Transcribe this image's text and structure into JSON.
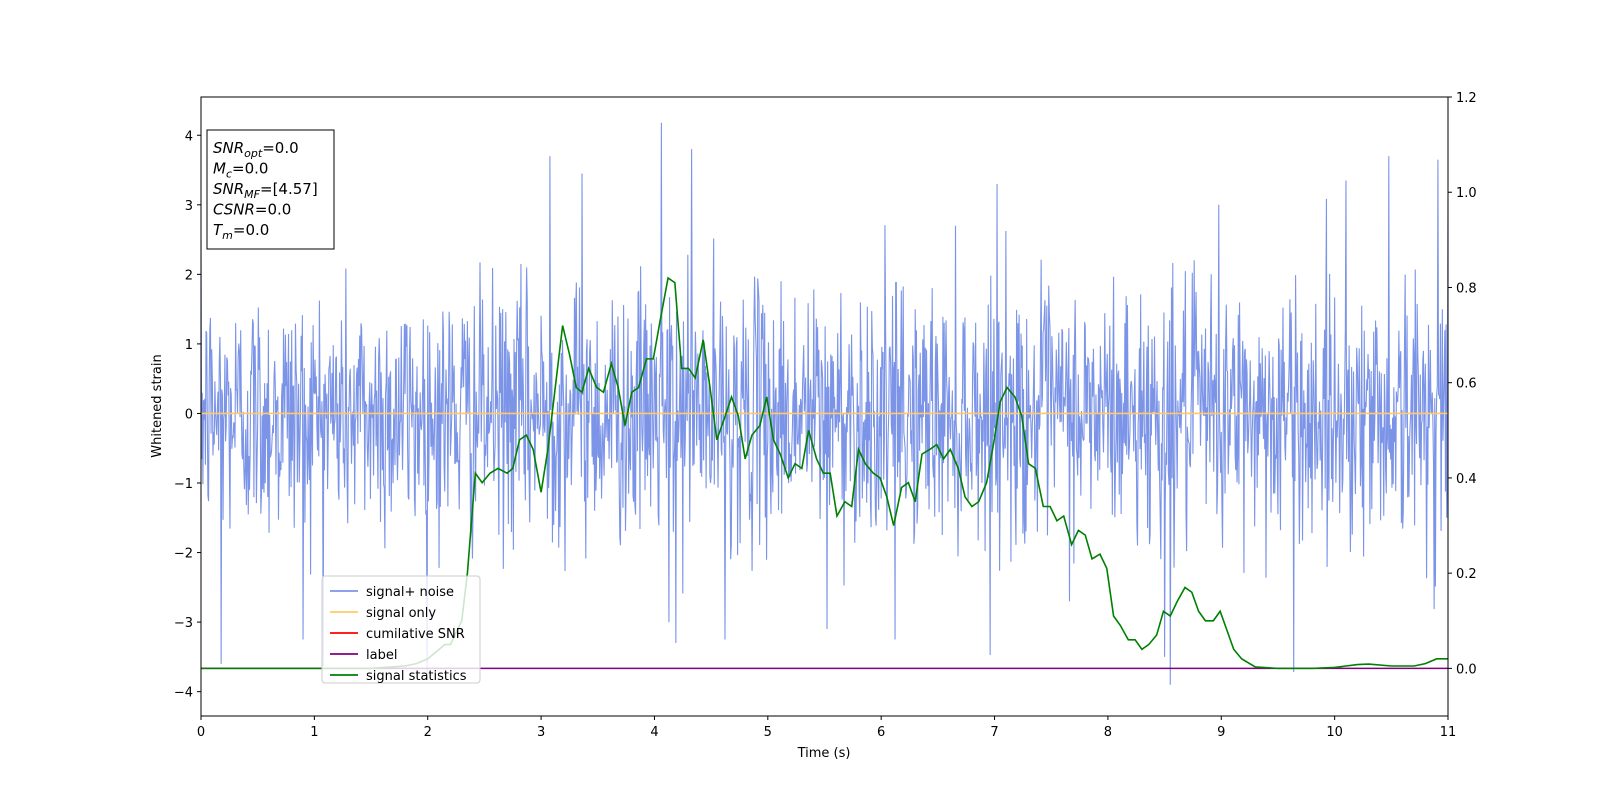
{
  "chart_data": {
    "type": "line",
    "xlabel": "Time (s)",
    "ylabel": "Whitened strain",
    "xlim": [
      0,
      11
    ],
    "ylim": [
      -4.35,
      4.55
    ],
    "y2lim": [
      -0.1,
      1.2
    ],
    "x_ticks": [
      "0",
      "1",
      "2",
      "3",
      "4",
      "5",
      "6",
      "7",
      "8",
      "9",
      "10",
      "11"
    ],
    "y_ticks": [
      "4",
      "3",
      "2",
      "1",
      "0",
      "−1",
      "−2",
      "−3",
      "−4"
    ],
    "y2_ticks": [
      "1.2",
      "1.0",
      "0.8",
      "0.6",
      "0.4",
      "0.2",
      "0.0"
    ],
    "grid": false,
    "legend_position": "lower-left",
    "info_box": [
      {
        "base": "SNR",
        "sub": "opt",
        "rest": "=0.0"
      },
      {
        "base": "M",
        "sub": "c",
        "rest": "=0.0"
      },
      {
        "base": "SNR",
        "sub": "MF",
        "rest": "=[4.57]"
      },
      {
        "base": "CSNR",
        "sub": "",
        "rest": "=0.0"
      },
      {
        "base": "T",
        "sub": "m",
        "rest": "=0.0"
      }
    ],
    "series": [
      {
        "name": "signal+ noise",
        "color": "#7b94e8",
        "axis": "left",
        "kind": "noise",
        "noise_envelope": {
          "typical_peak": 2.3,
          "core_band": [
            -1.3,
            1.4
          ],
          "min": -3.9,
          "max": 4.2,
          "sample_rate_hz": 180
        },
        "spikes": [
          [
            0.18,
            -3.6
          ],
          [
            0.9,
            -3.25
          ],
          [
            3.08,
            3.7
          ],
          [
            3.36,
            3.45
          ],
          [
            4.06,
            4.18
          ],
          [
            4.13,
            -3.0
          ],
          [
            4.19,
            -3.3
          ],
          [
            4.33,
            3.8
          ],
          [
            4.62,
            -3.25
          ],
          [
            5.52,
            -3.1
          ],
          [
            6.12,
            -3.25
          ],
          [
            8.5,
            -3.5
          ],
          [
            8.55,
            -3.92
          ],
          [
            9.64,
            -3.72
          ],
          [
            10.48,
            3.7
          ],
          [
            10.91,
            3.65
          ],
          [
            11.0,
            3.1
          ],
          [
            7.02,
            3.3
          ],
          [
            8.98,
            3.0
          ],
          [
            10.1,
            3.35
          ]
        ]
      },
      {
        "name": "signal only",
        "color": "#ffc966",
        "axis": "left",
        "x": [
          0,
          11
        ],
        "y": [
          0,
          0
        ]
      },
      {
        "name": "cumilative SNR",
        "color": "#ff0000",
        "axis": "right",
        "x": [],
        "y": []
      },
      {
        "name": "label",
        "color": "#800080",
        "axis": "right",
        "x": [
          0,
          11
        ],
        "y": [
          0.0,
          0.0
        ]
      },
      {
        "name": "signal statistics",
        "color": "#008000",
        "axis": "right",
        "x": [
          0,
          0.5,
          1.0,
          1.5,
          1.8,
          1.9,
          2.0,
          2.1,
          2.15,
          2.2,
          2.3,
          2.35,
          2.42,
          2.48,
          2.55,
          2.62,
          2.7,
          2.75,
          2.81,
          2.87,
          2.93,
          3.0,
          3.06,
          3.12,
          3.19,
          3.25,
          3.31,
          3.36,
          3.42,
          3.49,
          3.55,
          3.62,
          3.68,
          3.74,
          3.8,
          3.86,
          3.93,
          3.99,
          4.05,
          4.12,
          4.18,
          4.24,
          4.3,
          4.36,
          4.43,
          4.49,
          4.55,
          4.61,
          4.68,
          4.74,
          4.8,
          4.86,
          4.93,
          4.99,
          5.05,
          5.11,
          5.18,
          5.24,
          5.3,
          5.36,
          5.43,
          5.49,
          5.55,
          5.61,
          5.68,
          5.74,
          5.8,
          5.86,
          5.93,
          5.99,
          6.05,
          6.11,
          6.18,
          6.24,
          6.3,
          6.36,
          6.43,
          6.49,
          6.55,
          6.61,
          6.68,
          6.74,
          6.8,
          6.86,
          6.93,
          6.99,
          7.05,
          7.11,
          7.18,
          7.24,
          7.3,
          7.36,
          7.43,
          7.49,
          7.55,
          7.61,
          7.68,
          7.74,
          7.8,
          7.86,
          7.93,
          7.99,
          8.05,
          8.11,
          8.18,
          8.24,
          8.3,
          8.36,
          8.43,
          8.49,
          8.55,
          8.61,
          8.68,
          8.74,
          8.8,
          8.86,
          8.93,
          8.99,
          9.05,
          9.11,
          9.18,
          9.3,
          9.5,
          9.8,
          10.0,
          10.1,
          10.2,
          10.3,
          10.5,
          10.7,
          10.8,
          10.9,
          11.0
        ],
        "y": [
          0.0,
          0.0,
          0.0,
          0.0,
          0.005,
          0.01,
          0.02,
          0.04,
          0.05,
          0.05,
          0.1,
          0.2,
          0.41,
          0.39,
          0.41,
          0.42,
          0.41,
          0.42,
          0.48,
          0.49,
          0.46,
          0.37,
          0.46,
          0.58,
          0.72,
          0.66,
          0.59,
          0.58,
          0.63,
          0.59,
          0.58,
          0.64,
          0.59,
          0.51,
          0.58,
          0.59,
          0.65,
          0.65,
          0.73,
          0.82,
          0.81,
          0.63,
          0.63,
          0.61,
          0.69,
          0.59,
          0.48,
          0.52,
          0.57,
          0.53,
          0.44,
          0.49,
          0.51,
          0.57,
          0.48,
          0.45,
          0.4,
          0.43,
          0.42,
          0.5,
          0.44,
          0.41,
          0.41,
          0.32,
          0.35,
          0.34,
          0.46,
          0.43,
          0.41,
          0.4,
          0.36,
          0.3,
          0.38,
          0.39,
          0.35,
          0.45,
          0.46,
          0.47,
          0.44,
          0.46,
          0.42,
          0.36,
          0.34,
          0.35,
          0.39,
          0.47,
          0.56,
          0.59,
          0.57,
          0.53,
          0.43,
          0.42,
          0.34,
          0.34,
          0.31,
          0.32,
          0.26,
          0.29,
          0.28,
          0.23,
          0.24,
          0.21,
          0.11,
          0.09,
          0.06,
          0.06,
          0.04,
          0.05,
          0.07,
          0.12,
          0.11,
          0.14,
          0.17,
          0.16,
          0.12,
          0.1,
          0.1,
          0.12,
          0.08,
          0.04,
          0.02,
          0.003,
          0.0,
          0.0,
          0.002,
          0.005,
          0.008,
          0.009,
          0.005,
          0.005,
          0.01,
          0.02,
          0.02
        ]
      }
    ]
  }
}
